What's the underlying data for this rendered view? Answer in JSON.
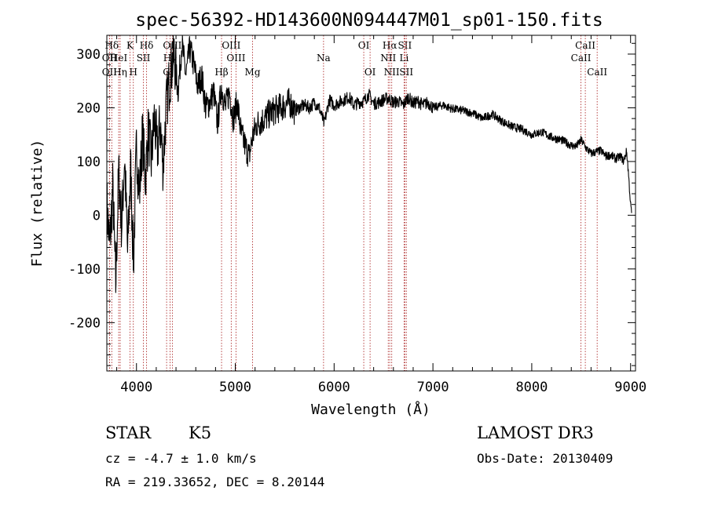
{
  "chart_data": {
    "type": "line",
    "title": "spec-56392-HD143600N094447M01_sp01-150.fits",
    "xlabel": "Wavelength (Å)",
    "ylabel": "Flux (relative)",
    "xlim": [
      3700,
      9050
    ],
    "ylim": [
      -290,
      335
    ],
    "x_ticks": [
      4000,
      5000,
      6000,
      7000,
      8000,
      9000
    ],
    "y_ticks": [
      -200,
      -100,
      0,
      100,
      200,
      300
    ],
    "series": [
      {
        "name": "spectrum",
        "x": [
          3700,
          3730,
          3760,
          3790,
          3820,
          3850,
          3880,
          3910,
          3940,
          3970,
          4000,
          4030,
          4060,
          4090,
          4120,
          4150,
          4180,
          4210,
          4240,
          4270,
          4300,
          4340,
          4380,
          4420,
          4460,
          4500,
          4540,
          4580,
          4620,
          4660,
          4700,
          4740,
          4780,
          4820,
          4860,
          4900,
          4940,
          4980,
          5020,
          5060,
          5100,
          5140,
          5180,
          5220,
          5260,
          5300,
          5350,
          5400,
          5450,
          5500,
          5550,
          5600,
          5650,
          5700,
          5750,
          5800,
          5850,
          5900,
          5950,
          6000,
          6050,
          6100,
          6150,
          6200,
          6250,
          6300,
          6350,
          6400,
          6450,
          6500,
          6550,
          6600,
          6650,
          6700,
          6750,
          6800,
          6850,
          6900,
          6950,
          7000,
          7100,
          7200,
          7300,
          7400,
          7500,
          7600,
          7700,
          7800,
          7900,
          8000,
          8100,
          8200,
          8300,
          8400,
          8450,
          8500,
          8550,
          8600,
          8650,
          8700,
          8750,
          8800,
          8850,
          8900,
          8930,
          8960,
          8980,
          9000,
          9010
        ],
        "y": [
          20,
          -60,
          50,
          -130,
          80,
          -20,
          110,
          -70,
          90,
          -90,
          130,
          40,
          150,
          70,
          160,
          100,
          180,
          120,
          170,
          90,
          200,
          260,
          300,
          230,
          320,
          260,
          310,
          280,
          240,
          260,
          200,
          210,
          230,
          170,
          240,
          200,
          230,
          180,
          210,
          150,
          130,
          110,
          150,
          170,
          175,
          180,
          190,
          195,
          200,
          205,
          210,
          195,
          200,
          205,
          200,
          210,
          200,
          170,
          215,
          205,
          210,
          215,
          220,
          205,
          210,
          212,
          225,
          208,
          210,
          215,
          218,
          210,
          212,
          205,
          220,
          208,
          212,
          205,
          210,
          200,
          205,
          198,
          195,
          190,
          180,
          188,
          175,
          165,
          160,
          150,
          155,
          145,
          140,
          130,
          128,
          140,
          125,
          115,
          118,
          120,
          110,
          112,
          105,
          110,
          100,
          120,
          75,
          20,
          5
        ]
      }
    ],
    "line_markers": [
      {
        "label": "Hδ",
        "x": 3750,
        "row": 1
      },
      {
        "label": "HeI",
        "x": 3820,
        "row": 2
      },
      {
        "label": "K",
        "x": 3934,
        "row": 1
      },
      {
        "label": "Hδ",
        "x": 4102,
        "row": 1
      },
      {
        "label": "OII",
        "x": 3727,
        "row": 2
      },
      {
        "label": "SII",
        "x": 4070,
        "row": 2
      },
      {
        "label": "OIII",
        "x": 4363,
        "row": 1
      },
      {
        "label": "Hγ",
        "x": 4340,
        "row": 2
      },
      {
        "label": "OII",
        "x": 3727,
        "row": 3
      },
      {
        "label": "Hη",
        "x": 3835,
        "row": 3
      },
      {
        "label": "H",
        "x": 3968,
        "row": 3
      },
      {
        "label": "G",
        "x": 4305,
        "row": 3
      },
      {
        "label": "Hβ",
        "x": 4861,
        "row": 3
      },
      {
        "label": "OIII",
        "x": 4959,
        "row": 1
      },
      {
        "label": "OIII",
        "x": 5007,
        "row": 2
      },
      {
        "label": "Mg",
        "x": 5175,
        "row": 3
      },
      {
        "label": "Na",
        "x": 5893,
        "row": 2
      },
      {
        "label": "OI",
        "x": 6300,
        "row": 1
      },
      {
        "label": "OI",
        "x": 6364,
        "row": 3
      },
      {
        "label": "Hα",
        "x": 6563,
        "row": 1
      },
      {
        "label": "NII",
        "x": 6548,
        "row": 2
      },
      {
        "label": "NII",
        "x": 6583,
        "row": 3
      },
      {
        "label": "SII",
        "x": 6716,
        "row": 1
      },
      {
        "label": "Li",
        "x": 6708,
        "row": 2
      },
      {
        "label": "SII",
        "x": 6731,
        "row": 3
      },
      {
        "label": "CaII",
        "x": 8542,
        "row": 1
      },
      {
        "label": "CaII",
        "x": 8498,
        "row": 2
      },
      {
        "label": "CaII",
        "x": 8662,
        "row": 3
      }
    ]
  },
  "info": {
    "object_class": "STAR",
    "subclass": "K5",
    "survey": "LAMOST DR3",
    "velocity": "cz = -4.7 ± 1.0 km/s",
    "obs_date": "Obs-Date: 20130409",
    "coords": "RA = 219.33652, DEC =   8.20144"
  }
}
